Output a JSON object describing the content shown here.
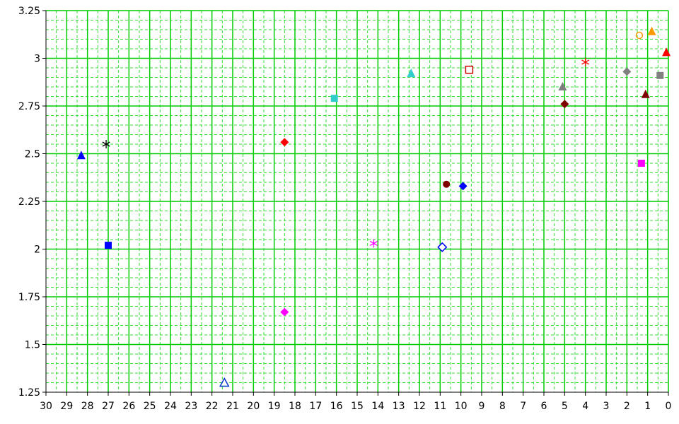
{
  "chart_data": {
    "type": "scatter",
    "title": "",
    "xlabel": "",
    "ylabel": "",
    "x_reversed": true,
    "xlim": [
      0,
      30
    ],
    "ylim": [
      1.25,
      3.25
    ],
    "x_ticks": [
      "30",
      "29",
      "28",
      "27",
      "26",
      "25",
      "24",
      "23",
      "22",
      "21",
      "20",
      "19",
      "18",
      "17",
      "16",
      "15",
      "14",
      "13",
      "12",
      "11",
      "10",
      "9",
      "8",
      "7",
      "6",
      "5",
      "4",
      "3",
      "2",
      "1",
      "0"
    ],
    "y_ticks": [
      "3.25",
      "3",
      "2.75",
      "2.5",
      "2.25",
      "2",
      "1.75",
      "1.5",
      "1.25"
    ],
    "grid": true,
    "colors": {
      "major_grid": "#00cc00",
      "minor_grid": "#33dd33",
      "axis": "#000000"
    },
    "points": [
      {
        "x": 28.3,
        "y": 2.49,
        "marker": "triangle-filled",
        "color": "#0000ff"
      },
      {
        "x": 27.1,
        "y": 2.55,
        "marker": "asterisk",
        "color": "#000000"
      },
      {
        "x": 27.0,
        "y": 2.02,
        "marker": "square-filled",
        "color": "#0000ff"
      },
      {
        "x": 21.4,
        "y": 1.3,
        "marker": "triangle-open",
        "color": "#0033cc"
      },
      {
        "x": 18.5,
        "y": 2.56,
        "marker": "diamond-filled",
        "color": "#ff0000"
      },
      {
        "x": 18.5,
        "y": 1.67,
        "marker": "diamond-filled",
        "color": "#ff00ff"
      },
      {
        "x": 16.1,
        "y": 2.79,
        "marker": "square-filled",
        "color": "#33cccc"
      },
      {
        "x": 14.2,
        "y": 2.03,
        "marker": "asterisk",
        "color": "#ff00ff"
      },
      {
        "x": 12.4,
        "y": 2.92,
        "marker": "triangle-filled",
        "color": "#33cccc"
      },
      {
        "x": 10.9,
        "y": 2.01,
        "marker": "diamond-open",
        "color": "#0000ff"
      },
      {
        "x": 10.7,
        "y": 2.34,
        "marker": "circle-filled",
        "color": "#800000"
      },
      {
        "x": 9.9,
        "y": 2.33,
        "marker": "diamond-filled",
        "color": "#0000ff"
      },
      {
        "x": 9.6,
        "y": 2.94,
        "marker": "square-open",
        "color": "#cc0000"
      },
      {
        "x": 5.1,
        "y": 2.85,
        "marker": "triangle-filled",
        "color": "#808080"
      },
      {
        "x": 5.0,
        "y": 2.76,
        "marker": "diamond-filled",
        "color": "#800000"
      },
      {
        "x": 4.0,
        "y": 2.98,
        "marker": "asterisk",
        "color": "#ff0000"
      },
      {
        "x": 2.0,
        "y": 2.93,
        "marker": "diamond-filled",
        "color": "#808080"
      },
      {
        "x": 1.4,
        "y": 3.12,
        "marker": "circle-open",
        "color": "#ff9900"
      },
      {
        "x": 1.3,
        "y": 2.45,
        "marker": "square-filled",
        "color": "#ff00ff"
      },
      {
        "x": 1.1,
        "y": 2.81,
        "marker": "triangle-filled",
        "color": "#800000"
      },
      {
        "x": 0.8,
        "y": 3.14,
        "marker": "triangle-filled",
        "color": "#ff9900"
      },
      {
        "x": 0.4,
        "y": 2.91,
        "marker": "square-filled",
        "color": "#808080"
      },
      {
        "x": 0.1,
        "y": 3.03,
        "marker": "triangle-filled",
        "color": "#ff0000"
      }
    ]
  }
}
